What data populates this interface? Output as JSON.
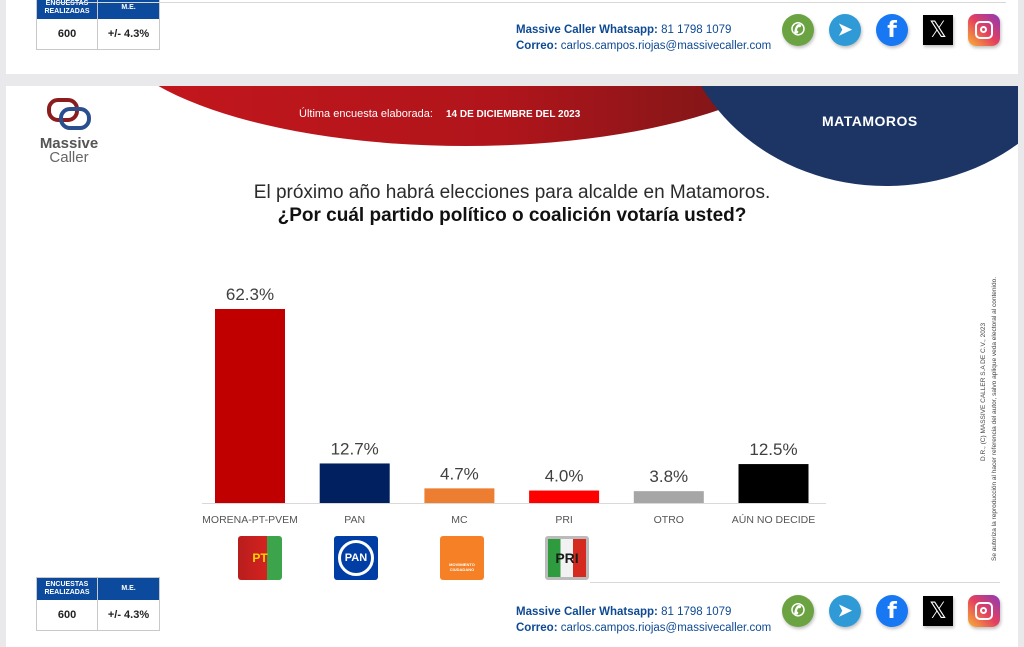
{
  "summary_box": {
    "header_surveys": "ENCUESTAS REALIZADAS",
    "header_me": "M.E.",
    "surveys_value": "600",
    "me_value": "+/- 4.3%"
  },
  "contact": {
    "whatsapp_label": "Massive Caller Whatsapp:",
    "whatsapp_value": "81 1798  1079",
    "email_label": "Correo:",
    "email_value": "carlos.campos.riojas@massivecaller.com"
  },
  "social_icons": [
    "whatsapp-icon",
    "telegram-icon",
    "facebook-icon",
    "x-icon",
    "instagram-icon"
  ],
  "header": {
    "last_survey_label": "Última encuesta elaborada:",
    "last_survey_date": "14 DE DICIEMBRE  DEL 2023",
    "city": "MATAMOROS"
  },
  "logo": {
    "line1": "Massive",
    "line2": "Caller"
  },
  "question": {
    "line1": "El próximo año habrá elecciones para alcalde en Matamoros.",
    "line2": "¿Por cuál partido político o coalición votaría usted?"
  },
  "legal": {
    "line1": "D.R., (C) MASSIVE CALLER S.A DE C.V., 2023",
    "line2": "Se autoriza la reproducción al hacer referencia del autor, salvo aplique veda electoral al contenido."
  },
  "party_logos": [
    {
      "name": "MORENA-PT-PVEM",
      "text": "PT",
      "color": "#c8102e"
    },
    {
      "name": "PAN",
      "text": "PAN",
      "color": "#003da5"
    },
    {
      "name": "MC",
      "text": "MOVIMIENTO CIUDADANO",
      "color": "#f58025"
    },
    {
      "name": "PRI",
      "text": "PRI",
      "color": "#d1d1d1"
    }
  ],
  "chart_data": {
    "type": "bar",
    "title": "¿Por cuál partido político o coalición votaría usted?",
    "xlabel": "",
    "ylabel": "",
    "ylim": [
      0,
      62.3
    ],
    "grid": false,
    "categories": [
      "MORENA-PT-PVEM",
      "PAN",
      "MC",
      "PRI",
      "OTRO",
      "AÚN NO DECIDE"
    ],
    "values": [
      62.3,
      12.7,
      4.7,
      4.0,
      3.8,
      12.5
    ],
    "labels": [
      "62.3%",
      "12.7%",
      "4.7%",
      "4.0%",
      "3.8%",
      "12.5%"
    ],
    "colors": [
      "#c00000",
      "#002060",
      "#ed7d31",
      "#ff0000",
      "#a6a6a6",
      "#000000"
    ]
  }
}
